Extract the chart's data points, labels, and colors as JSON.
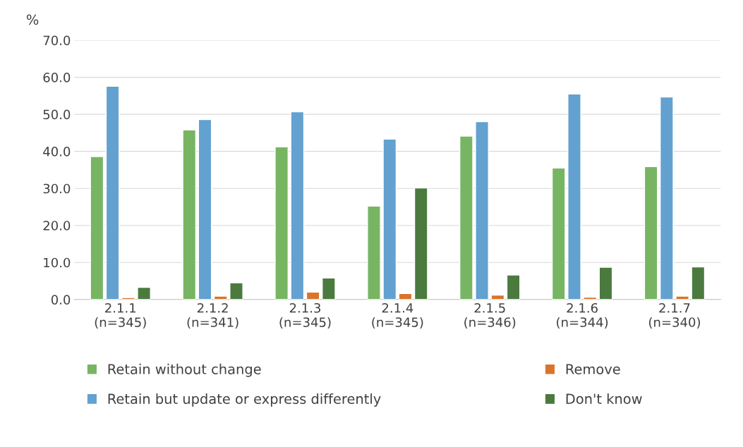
{
  "chart_data": {
    "type": "bar",
    "ylabel": "%",
    "categories": [
      "2.1.1\n(n=345)",
      "2.1.2\n(n=341)",
      "2.1.3\n(n=345)",
      "2.1.4\n(n=345)",
      "2.1.5\n(n=346)",
      "2.1.6\n(n=344)",
      "2.1.7\n(n=340)"
    ],
    "series": [
      {
        "name": "Retain without change",
        "color": "#77b563",
        "values": [
          38.6,
          45.8,
          41.2,
          25.2,
          44.1,
          35.5,
          35.9
        ]
      },
      {
        "name": "Retain but update or express differently",
        "color": "#62a1d0",
        "values": [
          57.6,
          48.6,
          50.7,
          43.3,
          48.0,
          55.5,
          54.7
        ]
      },
      {
        "name": "Remove",
        "color": "#d9742b",
        "values": [
          0.5,
          0.9,
          2.0,
          1.6,
          1.2,
          0.6,
          0.9
        ]
      },
      {
        "name": "Don't know",
        "color": "#4b7a3f",
        "values": [
          3.3,
          4.5,
          5.8,
          30.1,
          6.6,
          8.7,
          8.8
        ]
      }
    ],
    "ylim": [
      0,
      70
    ],
    "yticks": [
      {
        "value": 0,
        "label": "0.0"
      },
      {
        "value": 10,
        "label": "10.0"
      },
      {
        "value": 20,
        "label": "20.0"
      },
      {
        "value": 30,
        "label": "30.0"
      },
      {
        "value": 40,
        "label": "40.0"
      },
      {
        "value": 50,
        "label": "50.0"
      },
      {
        "value": 60,
        "label": "60.0"
      },
      {
        "value": 70,
        "label": "70.0"
      }
    ],
    "grid": "y",
    "legend": "bottom"
  }
}
